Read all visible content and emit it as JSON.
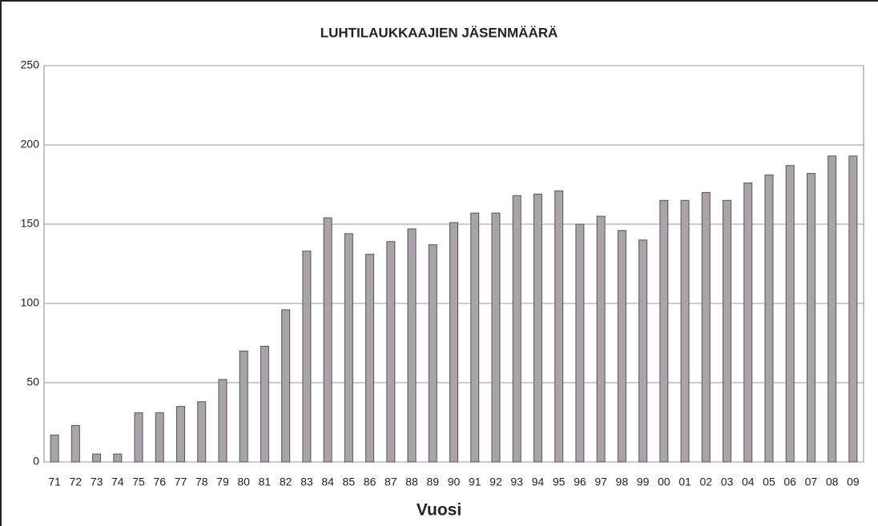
{
  "chart_data": {
    "type": "bar",
    "title": "LUHTILAUKKAAJIEN JÄSENMÄÄRÄ",
    "x_label": "Vuosi",
    "categories": [
      "71",
      "72",
      "73",
      "74",
      "75",
      "76",
      "77",
      "78",
      "79",
      "80",
      "81",
      "82",
      "83",
      "84",
      "85",
      "86",
      "87",
      "88",
      "89",
      "90",
      "91",
      "92",
      "93",
      "94",
      "95",
      "96",
      "97",
      "98",
      "99",
      "00",
      "01",
      "02",
      "03",
      "04",
      "05",
      "06",
      "07",
      "08",
      "09"
    ],
    "values": [
      17,
      23,
      5,
      5,
      31,
      31,
      35,
      38,
      52,
      70,
      73,
      96,
      133,
      154,
      144,
      131,
      139,
      147,
      137,
      151,
      157,
      157,
      168,
      169,
      171,
      150,
      155,
      146,
      140,
      165,
      165,
      170,
      165,
      176,
      181,
      187,
      182,
      193,
      193
    ],
    "color": "#a8a4a8",
    "ylim": [
      0,
      250
    ],
    "yticks": [
      0,
      50,
      100,
      150,
      200,
      250
    ],
    "grid": true
  }
}
